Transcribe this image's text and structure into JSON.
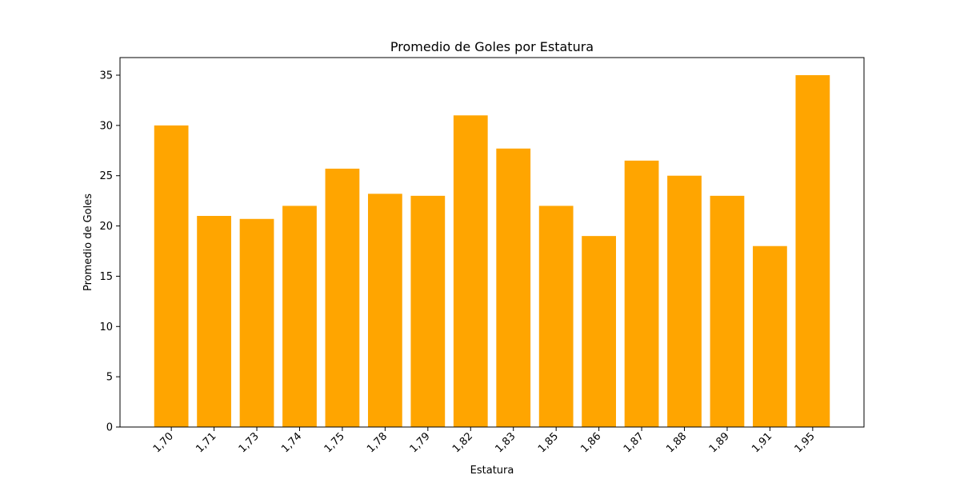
{
  "chart_data": {
    "type": "bar",
    "title": "Promedio de Goles por Estatura",
    "xlabel": "Estatura",
    "ylabel": "Promedio de Goles",
    "categories": [
      "1,70",
      "1,71",
      "1,73",
      "1,74",
      "1,75",
      "1,78",
      "1,79",
      "1,82",
      "1,83",
      "1,85",
      "1,86",
      "1,87",
      "1,88",
      "1,89",
      "1,91",
      "1,95"
    ],
    "values": [
      30,
      21,
      20.7,
      22,
      25.7,
      23.2,
      23,
      31,
      27.7,
      22,
      19,
      26.5,
      25,
      23,
      18,
      35
    ],
    "yticks": [
      0,
      5,
      10,
      15,
      20,
      25,
      30,
      35
    ],
    "ylim": [
      0,
      36.75
    ],
    "bar_color": "#ffa500",
    "grid": false,
    "legend": "none"
  }
}
